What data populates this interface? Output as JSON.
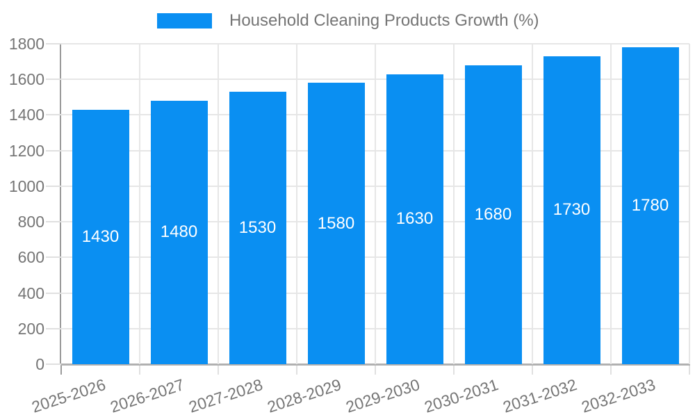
{
  "chart_data": {
    "type": "bar",
    "title": "",
    "legend": "Household Cleaning Products Growth (%)",
    "legend_position": "top",
    "categories": [
      "2025-2026",
      "2026-2027",
      "2027-2028",
      "2028-2029",
      "2029-2030",
      "2030-2031",
      "2031-2032",
      "2032-2033"
    ],
    "values": [
      1430,
      1480,
      1530,
      1580,
      1630,
      1680,
      1730,
      1780
    ],
    "xlabel": "",
    "ylabel": "",
    "ylim": [
      0,
      1800
    ],
    "yticks": [
      0,
      200,
      400,
      600,
      800,
      1000,
      1200,
      1400,
      1600,
      1800
    ],
    "grid": true,
    "bar_value_labels_shown": true,
    "colors": {
      "bar": "#0a8ff2",
      "bar_label": "#ffffff",
      "axis_text": "#757575",
      "gridline": "#e6e6e6",
      "tick": "#e0e0e0",
      "axis_line_y": "#9a9a9a",
      "axis_line_x": "#b0b0b0"
    }
  }
}
